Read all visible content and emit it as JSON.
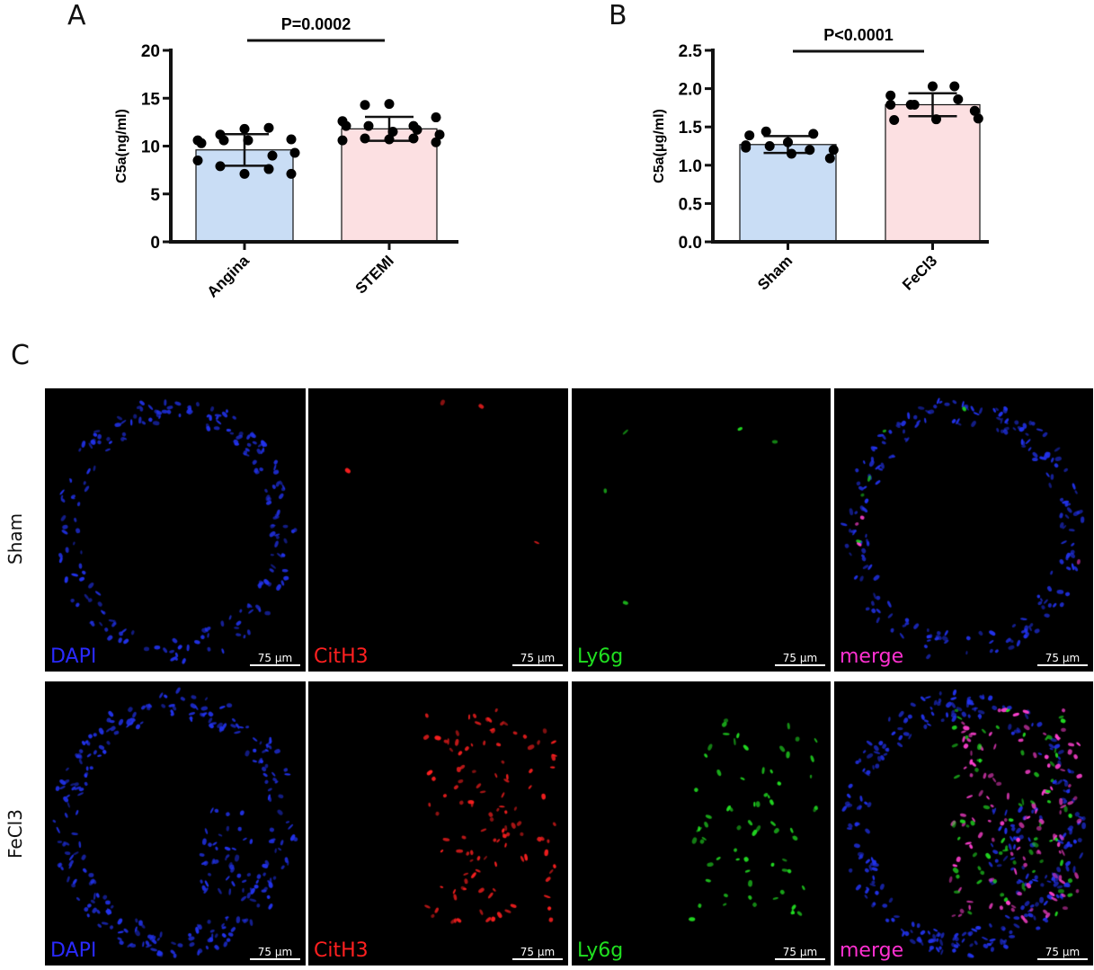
{
  "panel_letters": {
    "a": "A",
    "b": "B",
    "c": "C"
  },
  "chart_data": [
    {
      "type": "bar",
      "panel": "A",
      "categories": [
        "Angina",
        "STEMI"
      ],
      "values": [
        9.6,
        11.8
      ],
      "sd": [
        1.65,
        1.25
      ],
      "points": [
        [
          10.6,
          11.2,
          11.8,
          11.9,
          10.7,
          10.3,
          10.6,
          10.6,
          9.0,
          9.3,
          8.5,
          7.9,
          7.1,
          7.6,
          7.1
        ],
        [
          12.6,
          14.3,
          14.4,
          12.1,
          13.0,
          12.1,
          12.1,
          11.5,
          11.7,
          11.2,
          10.6,
          10.8,
          10.7,
          10.8,
          10.4
        ]
      ],
      "bar_colors": [
        "#c9ddf5",
        "#fce0e2"
      ],
      "ylabel": "C5a(ng/ml)",
      "ylim": [
        0,
        20
      ],
      "yticks": [
        "0",
        "5",
        "10",
        "15",
        "20"
      ],
      "significance": "P=0.0002",
      "grid": false
    },
    {
      "type": "bar",
      "panel": "B",
      "categories": [
        "Sham",
        "FeCl3"
      ],
      "values": [
        1.27,
        1.79
      ],
      "sd": [
        0.11,
        0.15
      ],
      "points": [
        [
          1.26,
          1.44,
          1.3,
          1.2,
          1.09,
          1.39,
          1.25,
          1.15,
          1.41,
          1.2,
          1.23
        ],
        [
          1.91,
          1.79,
          2.03,
          2.03,
          1.71,
          1.59,
          1.79,
          1.6,
          1.86,
          1.61,
          1.79
        ]
      ],
      "bar_colors": [
        "#c9ddf5",
        "#fce0e2"
      ],
      "ylabel": "C5a(μg/ml)",
      "ylim": [
        0,
        2.5
      ],
      "yticks": [
        "0.0",
        "0.5",
        "1.0",
        "1.5",
        "2.0",
        "2.5"
      ],
      "significance": "P<0.0001",
      "grid": false
    }
  ],
  "microscopy": {
    "rows": [
      "Sham",
      "FeCl3"
    ],
    "channels": [
      {
        "label": "DAPI",
        "color": "#2a2aff"
      },
      {
        "label": "CitH3",
        "color": "#ff2020"
      },
      {
        "label": "Ly6g",
        "color": "#20e020"
      },
      {
        "label": "merge",
        "color": "#ff30d0"
      }
    ],
    "scale_bar": "75 μm"
  }
}
